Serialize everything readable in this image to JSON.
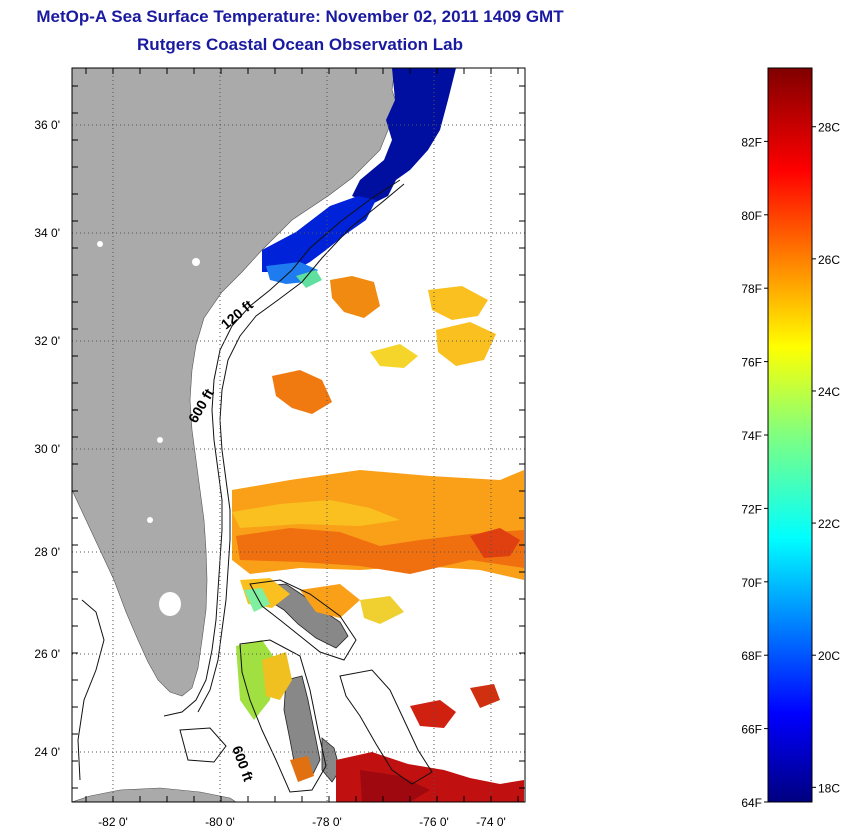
{
  "header": {
    "title": "MetOp-A Sea Surface Temperature:  November 02, 2011 1409 GMT",
    "subtitle": "Rutgers Coastal Ocean Observation Lab"
  },
  "map": {
    "lon_ticks": [
      "-82 0'",
      "-80 0'",
      "-78 0'",
      "-76 0'",
      "-74 0'"
    ],
    "lat_ticks": [
      "36 0'",
      "34 0'",
      "32 0'",
      "30 0'",
      "28 0'",
      "26 0'",
      "24 0'"
    ],
    "contour_labels": [
      "120 ft",
      "600 ft",
      "600 ft"
    ],
    "colors": {
      "land": "#aaaaaa",
      "ocean": "#ffffff"
    }
  },
  "colorbar": {
    "fahrenheit_labels": [
      "82F",
      "80F",
      "78F",
      "76F",
      "74F",
      "72F",
      "70F",
      "68F",
      "66F",
      "64F"
    ],
    "celsius_labels": [
      "28C",
      "26C",
      "24C",
      "22C",
      "20C",
      "18C"
    ],
    "range_f": [
      64,
      84
    ]
  }
}
